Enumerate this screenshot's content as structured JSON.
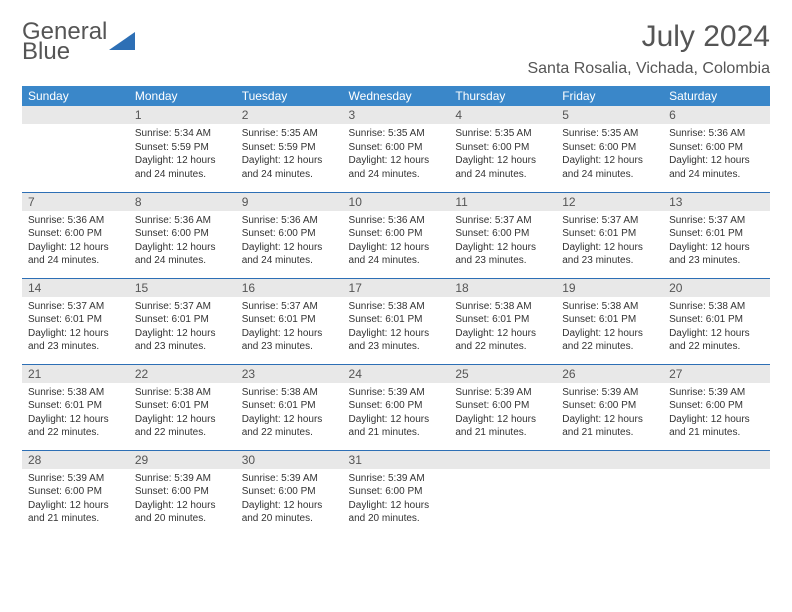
{
  "brand": {
    "part1": "General",
    "part2": "Blue"
  },
  "title": "July 2024",
  "location": "Santa Rosalia, Vichada, Colombia",
  "colors": {
    "header_bg": "#3a87c9",
    "border": "#2d6fb5",
    "daynum_bg": "#e8e8e8",
    "text": "#333333",
    "muted": "#555555",
    "white": "#ffffff"
  },
  "layout": {
    "cols": 7,
    "rows": 5,
    "first_weekday_offset": 1
  },
  "weekdays": [
    "Sunday",
    "Monday",
    "Tuesday",
    "Wednesday",
    "Thursday",
    "Friday",
    "Saturday"
  ],
  "days": [
    {
      "n": 1,
      "sunrise": "5:34 AM",
      "sunset": "5:59 PM",
      "daylight": "12 hours and 24 minutes."
    },
    {
      "n": 2,
      "sunrise": "5:35 AM",
      "sunset": "5:59 PM",
      "daylight": "12 hours and 24 minutes."
    },
    {
      "n": 3,
      "sunrise": "5:35 AM",
      "sunset": "6:00 PM",
      "daylight": "12 hours and 24 minutes."
    },
    {
      "n": 4,
      "sunrise": "5:35 AM",
      "sunset": "6:00 PM",
      "daylight": "12 hours and 24 minutes."
    },
    {
      "n": 5,
      "sunrise": "5:35 AM",
      "sunset": "6:00 PM",
      "daylight": "12 hours and 24 minutes."
    },
    {
      "n": 6,
      "sunrise": "5:36 AM",
      "sunset": "6:00 PM",
      "daylight": "12 hours and 24 minutes."
    },
    {
      "n": 7,
      "sunrise": "5:36 AM",
      "sunset": "6:00 PM",
      "daylight": "12 hours and 24 minutes."
    },
    {
      "n": 8,
      "sunrise": "5:36 AM",
      "sunset": "6:00 PM",
      "daylight": "12 hours and 24 minutes."
    },
    {
      "n": 9,
      "sunrise": "5:36 AM",
      "sunset": "6:00 PM",
      "daylight": "12 hours and 24 minutes."
    },
    {
      "n": 10,
      "sunrise": "5:36 AM",
      "sunset": "6:00 PM",
      "daylight": "12 hours and 24 minutes."
    },
    {
      "n": 11,
      "sunrise": "5:37 AM",
      "sunset": "6:00 PM",
      "daylight": "12 hours and 23 minutes."
    },
    {
      "n": 12,
      "sunrise": "5:37 AM",
      "sunset": "6:01 PM",
      "daylight": "12 hours and 23 minutes."
    },
    {
      "n": 13,
      "sunrise": "5:37 AM",
      "sunset": "6:01 PM",
      "daylight": "12 hours and 23 minutes."
    },
    {
      "n": 14,
      "sunrise": "5:37 AM",
      "sunset": "6:01 PM",
      "daylight": "12 hours and 23 minutes."
    },
    {
      "n": 15,
      "sunrise": "5:37 AM",
      "sunset": "6:01 PM",
      "daylight": "12 hours and 23 minutes."
    },
    {
      "n": 16,
      "sunrise": "5:37 AM",
      "sunset": "6:01 PM",
      "daylight": "12 hours and 23 minutes."
    },
    {
      "n": 17,
      "sunrise": "5:38 AM",
      "sunset": "6:01 PM",
      "daylight": "12 hours and 23 minutes."
    },
    {
      "n": 18,
      "sunrise": "5:38 AM",
      "sunset": "6:01 PM",
      "daylight": "12 hours and 22 minutes."
    },
    {
      "n": 19,
      "sunrise": "5:38 AM",
      "sunset": "6:01 PM",
      "daylight": "12 hours and 22 minutes."
    },
    {
      "n": 20,
      "sunrise": "5:38 AM",
      "sunset": "6:01 PM",
      "daylight": "12 hours and 22 minutes."
    },
    {
      "n": 21,
      "sunrise": "5:38 AM",
      "sunset": "6:01 PM",
      "daylight": "12 hours and 22 minutes."
    },
    {
      "n": 22,
      "sunrise": "5:38 AM",
      "sunset": "6:01 PM",
      "daylight": "12 hours and 22 minutes."
    },
    {
      "n": 23,
      "sunrise": "5:38 AM",
      "sunset": "6:01 PM",
      "daylight": "12 hours and 22 minutes."
    },
    {
      "n": 24,
      "sunrise": "5:39 AM",
      "sunset": "6:00 PM",
      "daylight": "12 hours and 21 minutes."
    },
    {
      "n": 25,
      "sunrise": "5:39 AM",
      "sunset": "6:00 PM",
      "daylight": "12 hours and 21 minutes."
    },
    {
      "n": 26,
      "sunrise": "5:39 AM",
      "sunset": "6:00 PM",
      "daylight": "12 hours and 21 minutes."
    },
    {
      "n": 27,
      "sunrise": "5:39 AM",
      "sunset": "6:00 PM",
      "daylight": "12 hours and 21 minutes."
    },
    {
      "n": 28,
      "sunrise": "5:39 AM",
      "sunset": "6:00 PM",
      "daylight": "12 hours and 21 minutes."
    },
    {
      "n": 29,
      "sunrise": "5:39 AM",
      "sunset": "6:00 PM",
      "daylight": "12 hours and 20 minutes."
    },
    {
      "n": 30,
      "sunrise": "5:39 AM",
      "sunset": "6:00 PM",
      "daylight": "12 hours and 20 minutes."
    },
    {
      "n": 31,
      "sunrise": "5:39 AM",
      "sunset": "6:00 PM",
      "daylight": "12 hours and 20 minutes."
    }
  ],
  "labels": {
    "sunrise": "Sunrise:",
    "sunset": "Sunset:",
    "daylight": "Daylight:"
  }
}
